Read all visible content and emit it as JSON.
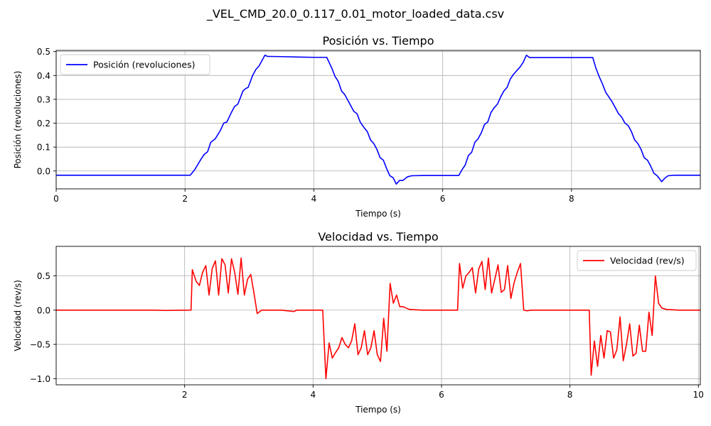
{
  "figure": {
    "title": "_VEL_CMD_20.0_0.117_0.01_motor_loaded_data.csv"
  },
  "chart_data": [
    {
      "type": "line",
      "title": "Posición vs. Tiempo",
      "xlabel": "Tiempo (s)",
      "ylabel": "Posición (revoluciones)",
      "xlim": [
        0,
        10
      ],
      "ylim": [
        -0.075,
        0.505
      ],
      "xticks": [
        0,
        2,
        4,
        6,
        8
      ],
      "yticks": [
        0.0,
        0.1,
        0.2,
        0.3,
        0.4,
        0.5
      ],
      "xtick_labels": [
        "0",
        "2",
        "4",
        "6",
        "8"
      ],
      "ytick_labels": [
        "0.0",
        "0.1",
        "0.2",
        "0.3",
        "0.4",
        "0.5"
      ],
      "grid": true,
      "legend_position": "upper left",
      "series": [
        {
          "name": "Posición (revoluciones)",
          "color": "#0000ff",
          "points": [
            [
              0.0,
              -0.018
            ],
            [
              2.08,
              -0.018
            ],
            [
              2.15,
              0.005
            ],
            [
              2.25,
              0.05
            ],
            [
              2.3,
              0.07
            ],
            [
              2.35,
              0.08
            ],
            [
              2.4,
              0.12
            ],
            [
              2.47,
              0.135
            ],
            [
              2.55,
              0.17
            ],
            [
              2.6,
              0.2
            ],
            [
              2.65,
              0.205
            ],
            [
              2.72,
              0.245
            ],
            [
              2.77,
              0.27
            ],
            [
              2.82,
              0.28
            ],
            [
              2.9,
              0.335
            ],
            [
              2.94,
              0.345
            ],
            [
              2.98,
              0.35
            ],
            [
              3.05,
              0.4
            ],
            [
              3.1,
              0.425
            ],
            [
              3.15,
              0.44
            ],
            [
              3.2,
              0.465
            ],
            [
              3.24,
              0.485
            ],
            [
              3.28,
              0.48
            ],
            [
              3.5,
              0.479
            ],
            [
              3.8,
              0.477
            ],
            [
              4.0,
              0.476
            ],
            [
              4.2,
              0.476
            ],
            [
              4.28,
              0.43
            ],
            [
              4.33,
              0.395
            ],
            [
              4.38,
              0.375
            ],
            [
              4.43,
              0.335
            ],
            [
              4.48,
              0.32
            ],
            [
              4.53,
              0.295
            ],
            [
              4.58,
              0.27
            ],
            [
              4.62,
              0.25
            ],
            [
              4.67,
              0.24
            ],
            [
              4.72,
              0.205
            ],
            [
              4.77,
              0.185
            ],
            [
              4.83,
              0.165
            ],
            [
              4.88,
              0.13
            ],
            [
              4.93,
              0.115
            ],
            [
              4.98,
              0.09
            ],
            [
              5.03,
              0.055
            ],
            [
              5.08,
              0.045
            ],
            [
              5.13,
              0.01
            ],
            [
              5.18,
              -0.02
            ],
            [
              5.23,
              -0.028
            ],
            [
              5.28,
              -0.055
            ],
            [
              5.33,
              -0.04
            ],
            [
              5.38,
              -0.04
            ],
            [
              5.45,
              -0.025
            ],
            [
              5.52,
              -0.02
            ],
            [
              5.7,
              -0.019
            ],
            [
              6.0,
              -0.019
            ],
            [
              6.25,
              -0.019
            ],
            [
              6.3,
              0.005
            ],
            [
              6.35,
              0.025
            ],
            [
              6.4,
              0.065
            ],
            [
              6.45,
              0.078
            ],
            [
              6.5,
              0.12
            ],
            [
              6.55,
              0.135
            ],
            [
              6.6,
              0.16
            ],
            [
              6.65,
              0.195
            ],
            [
              6.7,
              0.205
            ],
            [
              6.75,
              0.245
            ],
            [
              6.8,
              0.265
            ],
            [
              6.85,
              0.28
            ],
            [
              6.9,
              0.31
            ],
            [
              6.95,
              0.335
            ],
            [
              7.0,
              0.35
            ],
            [
              7.05,
              0.385
            ],
            [
              7.1,
              0.405
            ],
            [
              7.15,
              0.42
            ],
            [
              7.2,
              0.435
            ],
            [
              7.25,
              0.455
            ],
            [
              7.3,
              0.485
            ],
            [
              7.35,
              0.475
            ],
            [
              7.6,
              0.475
            ],
            [
              8.0,
              0.475
            ],
            [
              8.33,
              0.475
            ],
            [
              8.38,
              0.43
            ],
            [
              8.43,
              0.395
            ],
            [
              8.48,
              0.365
            ],
            [
              8.53,
              0.33
            ],
            [
              8.58,
              0.31
            ],
            [
              8.63,
              0.29
            ],
            [
              8.68,
              0.265
            ],
            [
              8.73,
              0.24
            ],
            [
              8.78,
              0.225
            ],
            [
              8.83,
              0.2
            ],
            [
              8.88,
              0.19
            ],
            [
              8.93,
              0.165
            ],
            [
              8.98,
              0.13
            ],
            [
              9.03,
              0.115
            ],
            [
              9.08,
              0.09
            ],
            [
              9.13,
              0.055
            ],
            [
              9.18,
              0.045
            ],
            [
              9.23,
              0.02
            ],
            [
              9.28,
              -0.01
            ],
            [
              9.33,
              -0.02
            ],
            [
              9.4,
              -0.045
            ],
            [
              9.45,
              -0.03
            ],
            [
              9.5,
              -0.02
            ],
            [
              9.6,
              -0.018
            ],
            [
              10.0,
              -0.018
            ]
          ]
        }
      ]
    },
    {
      "type": "line",
      "title": "Velocidad vs. Tiempo",
      "xlabel": "Tiempo (s)",
      "ylabel": "Velocidad (rev/s)",
      "xlim": [
        0.0,
        10.03
      ],
      "ylim": [
        -1.09,
        0.93
      ],
      "xticks": [
        2,
        4,
        6,
        8,
        10
      ],
      "yticks": [
        -1.0,
        -0.5,
        0.0,
        0.5
      ],
      "xtick_labels": [
        "2",
        "4",
        "6",
        "8",
        "10"
      ],
      "ytick_labels": [
        "−1.0",
        "−0.5",
        "0.0",
        "0.5"
      ],
      "grid": true,
      "legend_position": "upper right",
      "series": [
        {
          "name": "Velocidad (rev/s)",
          "color": "#ff0000",
          "points": [
            [
              0.0,
              0.0
            ],
            [
              1.5,
              0.0
            ],
            [
              1.7,
              -0.005
            ],
            [
              2.1,
              0.0
            ],
            [
              2.12,
              0.59
            ],
            [
              2.18,
              0.42
            ],
            [
              2.23,
              0.36
            ],
            [
              2.28,
              0.55
            ],
            [
              2.33,
              0.65
            ],
            [
              2.38,
              0.22
            ],
            [
              2.43,
              0.61
            ],
            [
              2.48,
              0.72
            ],
            [
              2.53,
              0.22
            ],
            [
              2.58,
              0.75
            ],
            [
              2.63,
              0.66
            ],
            [
              2.68,
              0.25
            ],
            [
              2.73,
              0.75
            ],
            [
              2.78,
              0.55
            ],
            [
              2.83,
              0.23
            ],
            [
              2.88,
              0.76
            ],
            [
              2.93,
              0.22
            ],
            [
              2.98,
              0.45
            ],
            [
              3.03,
              0.52
            ],
            [
              3.08,
              0.25
            ],
            [
              3.13,
              -0.05
            ],
            [
              3.2,
              0.0
            ],
            [
              3.5,
              0.0
            ],
            [
              3.7,
              -0.02
            ],
            [
              3.75,
              0.0
            ],
            [
              4.15,
              0.0
            ],
            [
              4.2,
              -1.0
            ],
            [
              4.25,
              -0.48
            ],
            [
              4.3,
              -0.7
            ],
            [
              4.35,
              -0.62
            ],
            [
              4.4,
              -0.55
            ],
            [
              4.45,
              -0.4
            ],
            [
              4.5,
              -0.5
            ],
            [
              4.55,
              -0.55
            ],
            [
              4.6,
              -0.45
            ],
            [
              4.65,
              -0.2
            ],
            [
              4.7,
              -0.65
            ],
            [
              4.75,
              -0.55
            ],
            [
              4.8,
              -0.3
            ],
            [
              4.85,
              -0.65
            ],
            [
              4.9,
              -0.55
            ],
            [
              4.95,
              -0.3
            ],
            [
              5.0,
              -0.65
            ],
            [
              5.05,
              -0.75
            ],
            [
              5.1,
              -0.12
            ],
            [
              5.15,
              -0.6
            ],
            [
              5.2,
              0.39
            ],
            [
              5.25,
              0.1
            ],
            [
              5.3,
              0.22
            ],
            [
              5.35,
              0.05
            ],
            [
              5.4,
              0.05
            ],
            [
              5.5,
              0.01
            ],
            [
              5.7,
              0.0
            ],
            [
              6.0,
              0.0
            ],
            [
              6.25,
              0.0
            ],
            [
              6.28,
              0.68
            ],
            [
              6.33,
              0.32
            ],
            [
              6.38,
              0.5
            ],
            [
              6.43,
              0.55
            ],
            [
              6.48,
              0.62
            ],
            [
              6.53,
              0.25
            ],
            [
              6.58,
              0.6
            ],
            [
              6.63,
              0.71
            ],
            [
              6.68,
              0.3
            ],
            [
              6.73,
              0.76
            ],
            [
              6.78,
              0.25
            ],
            [
              6.83,
              0.45
            ],
            [
              6.88,
              0.66
            ],
            [
              6.93,
              0.26
            ],
            [
              6.98,
              0.3
            ],
            [
              7.03,
              0.65
            ],
            [
              7.08,
              0.17
            ],
            [
              7.13,
              0.4
            ],
            [
              7.18,
              0.55
            ],
            [
              7.23,
              0.68
            ],
            [
              7.28,
              0.0
            ],
            [
              7.33,
              -0.01
            ],
            [
              7.4,
              0.0
            ],
            [
              8.0,
              0.0
            ],
            [
              8.3,
              0.0
            ],
            [
              8.33,
              -0.95
            ],
            [
              8.38,
              -0.45
            ],
            [
              8.43,
              -0.82
            ],
            [
              8.48,
              -0.37
            ],
            [
              8.53,
              -0.7
            ],
            [
              8.58,
              -0.3
            ],
            [
              8.63,
              -0.32
            ],
            [
              8.68,
              -0.7
            ],
            [
              8.73,
              -0.58
            ],
            [
              8.78,
              -0.1
            ],
            [
              8.83,
              -0.74
            ],
            [
              8.88,
              -0.5
            ],
            [
              8.93,
              -0.2
            ],
            [
              8.98,
              -0.67
            ],
            [
              9.03,
              -0.63
            ],
            [
              9.08,
              -0.22
            ],
            [
              9.13,
              -0.6
            ],
            [
              9.18,
              -0.6
            ],
            [
              9.23,
              -0.03
            ],
            [
              9.28,
              -0.37
            ],
            [
              9.33,
              0.5
            ],
            [
              9.38,
              0.1
            ],
            [
              9.43,
              0.03
            ],
            [
              9.5,
              0.01
            ],
            [
              9.7,
              0.0
            ],
            [
              10.03,
              0.0
            ]
          ]
        }
      ]
    }
  ]
}
